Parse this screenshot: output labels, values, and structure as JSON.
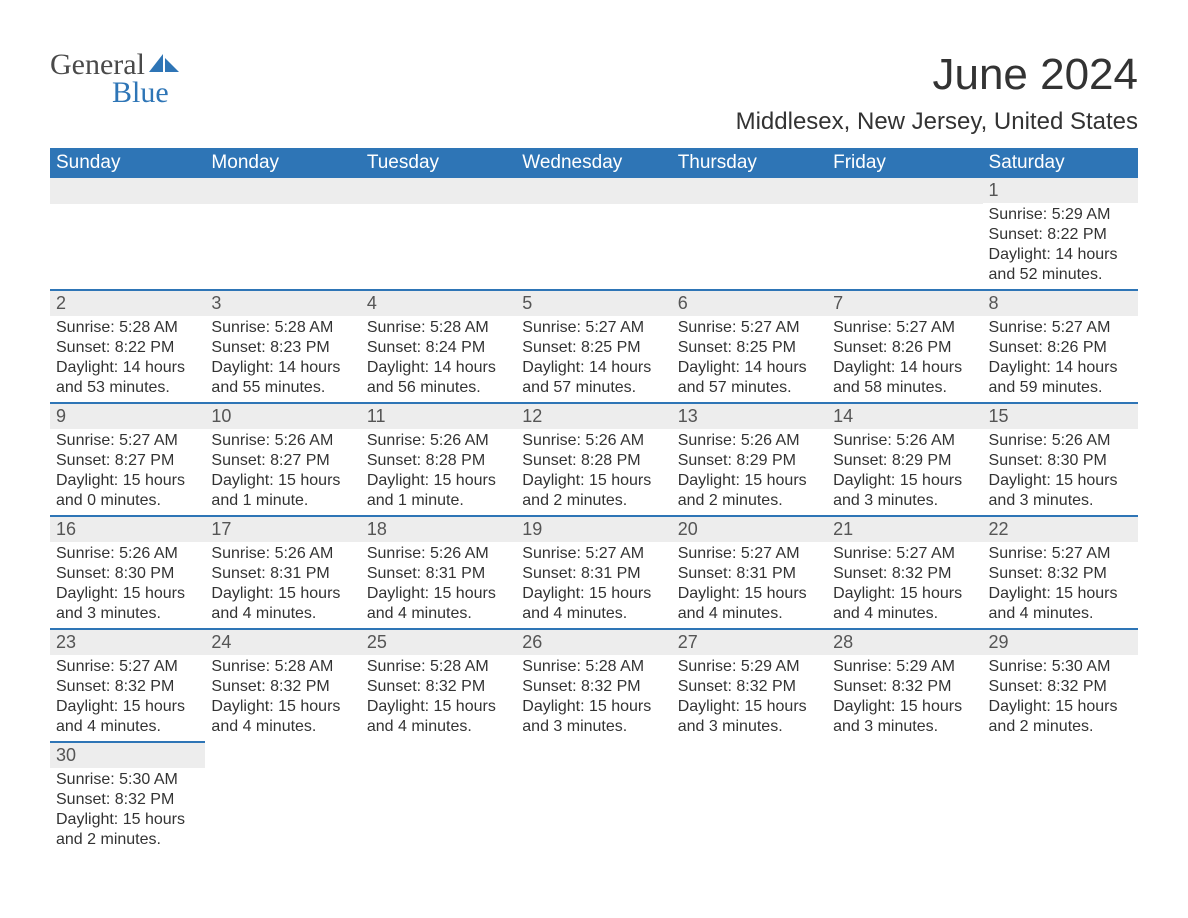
{
  "brand": {
    "word1": "General",
    "word2": "Blue"
  },
  "title": "June 2024",
  "location": "Middlesex, New Jersey, United States",
  "colors": {
    "header_bg": "#2e75b6",
    "header_text": "#ffffff",
    "daynum_bg": "#ededed",
    "row_border": "#2e75b6",
    "text": "#333333",
    "logo_gray": "#4a4a4a",
    "logo_blue": "#2e75b6"
  },
  "typography": {
    "title_fontsize": 44,
    "location_fontsize": 24,
    "weekday_fontsize": 19,
    "daynum_fontsize": 18,
    "detail_fontsize": 16,
    "logo_fontsize": 30
  },
  "calendar": {
    "weekdays": [
      "Sunday",
      "Monday",
      "Tuesday",
      "Wednesday",
      "Thursday",
      "Friday",
      "Saturday"
    ],
    "start_weekday_index": 6,
    "days": [
      {
        "n": 1,
        "sunrise": "5:29 AM",
        "sunset": "8:22 PM",
        "daylight": "14 hours and 52 minutes."
      },
      {
        "n": 2,
        "sunrise": "5:28 AM",
        "sunset": "8:22 PM",
        "daylight": "14 hours and 53 minutes."
      },
      {
        "n": 3,
        "sunrise": "5:28 AM",
        "sunset": "8:23 PM",
        "daylight": "14 hours and 55 minutes."
      },
      {
        "n": 4,
        "sunrise": "5:28 AM",
        "sunset": "8:24 PM",
        "daylight": "14 hours and 56 minutes."
      },
      {
        "n": 5,
        "sunrise": "5:27 AM",
        "sunset": "8:25 PM",
        "daylight": "14 hours and 57 minutes."
      },
      {
        "n": 6,
        "sunrise": "5:27 AM",
        "sunset": "8:25 PM",
        "daylight": "14 hours and 57 minutes."
      },
      {
        "n": 7,
        "sunrise": "5:27 AM",
        "sunset": "8:26 PM",
        "daylight": "14 hours and 58 minutes."
      },
      {
        "n": 8,
        "sunrise": "5:27 AM",
        "sunset": "8:26 PM",
        "daylight": "14 hours and 59 minutes."
      },
      {
        "n": 9,
        "sunrise": "5:27 AM",
        "sunset": "8:27 PM",
        "daylight": "15 hours and 0 minutes."
      },
      {
        "n": 10,
        "sunrise": "5:26 AM",
        "sunset": "8:27 PM",
        "daylight": "15 hours and 1 minute."
      },
      {
        "n": 11,
        "sunrise": "5:26 AM",
        "sunset": "8:28 PM",
        "daylight": "15 hours and 1 minute."
      },
      {
        "n": 12,
        "sunrise": "5:26 AM",
        "sunset": "8:28 PM",
        "daylight": "15 hours and 2 minutes."
      },
      {
        "n": 13,
        "sunrise": "5:26 AM",
        "sunset": "8:29 PM",
        "daylight": "15 hours and 2 minutes."
      },
      {
        "n": 14,
        "sunrise": "5:26 AM",
        "sunset": "8:29 PM",
        "daylight": "15 hours and 3 minutes."
      },
      {
        "n": 15,
        "sunrise": "5:26 AM",
        "sunset": "8:30 PM",
        "daylight": "15 hours and 3 minutes."
      },
      {
        "n": 16,
        "sunrise": "5:26 AM",
        "sunset": "8:30 PM",
        "daylight": "15 hours and 3 minutes."
      },
      {
        "n": 17,
        "sunrise": "5:26 AM",
        "sunset": "8:31 PM",
        "daylight": "15 hours and 4 minutes."
      },
      {
        "n": 18,
        "sunrise": "5:26 AM",
        "sunset": "8:31 PM",
        "daylight": "15 hours and 4 minutes."
      },
      {
        "n": 19,
        "sunrise": "5:27 AM",
        "sunset": "8:31 PM",
        "daylight": "15 hours and 4 minutes."
      },
      {
        "n": 20,
        "sunrise": "5:27 AM",
        "sunset": "8:31 PM",
        "daylight": "15 hours and 4 minutes."
      },
      {
        "n": 21,
        "sunrise": "5:27 AM",
        "sunset": "8:32 PM",
        "daylight": "15 hours and 4 minutes."
      },
      {
        "n": 22,
        "sunrise": "5:27 AM",
        "sunset": "8:32 PM",
        "daylight": "15 hours and 4 minutes."
      },
      {
        "n": 23,
        "sunrise": "5:27 AM",
        "sunset": "8:32 PM",
        "daylight": "15 hours and 4 minutes."
      },
      {
        "n": 24,
        "sunrise": "5:28 AM",
        "sunset": "8:32 PM",
        "daylight": "15 hours and 4 minutes."
      },
      {
        "n": 25,
        "sunrise": "5:28 AM",
        "sunset": "8:32 PM",
        "daylight": "15 hours and 4 minutes."
      },
      {
        "n": 26,
        "sunrise": "5:28 AM",
        "sunset": "8:32 PM",
        "daylight": "15 hours and 3 minutes."
      },
      {
        "n": 27,
        "sunrise": "5:29 AM",
        "sunset": "8:32 PM",
        "daylight": "15 hours and 3 minutes."
      },
      {
        "n": 28,
        "sunrise": "5:29 AM",
        "sunset": "8:32 PM",
        "daylight": "15 hours and 3 minutes."
      },
      {
        "n": 29,
        "sunrise": "5:30 AM",
        "sunset": "8:32 PM",
        "daylight": "15 hours and 2 minutes."
      },
      {
        "n": 30,
        "sunrise": "5:30 AM",
        "sunset": "8:32 PM",
        "daylight": "15 hours and 2 minutes."
      }
    ],
    "labels": {
      "sunrise": "Sunrise:",
      "sunset": "Sunset:",
      "daylight": "Daylight:"
    }
  }
}
